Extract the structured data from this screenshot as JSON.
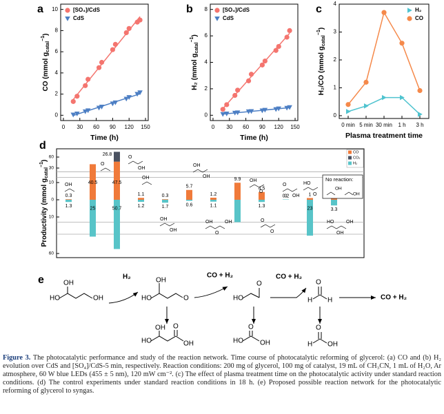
{
  "chart_data": [
    {
      "type": "scatter",
      "panel": "a",
      "xlabel": "Time (h)",
      "ylabel": [
        "CO (mmol g",
        "catal",
        "−1",
        ")"
      ],
      "x": [
        18,
        25,
        40,
        45,
        65,
        70,
        90,
        95,
        115,
        120,
        135,
        140
      ],
      "series": [
        {
          "name": "[SO₄]/CdS",
          "color": "#f4756f",
          "marker": "circle",
          "values": [
            1.3,
            1.8,
            2.8,
            3.4,
            4.5,
            5.0,
            6.2,
            6.7,
            7.8,
            8.2,
            8.8,
            9.0
          ]
        },
        {
          "name": "CdS",
          "color": "#4d7fc4",
          "marker": "triangle-down",
          "values": [
            0.05,
            0.15,
            0.35,
            0.45,
            0.7,
            0.8,
            1.1,
            1.2,
            1.55,
            1.7,
            2.0,
            2.15
          ]
        }
      ],
      "xlim": [
        -5,
        155
      ],
      "xticks": [
        0,
        30,
        60,
        90,
        120,
        150
      ],
      "ylim": [
        -0.5,
        10.5
      ],
      "yticks": [
        0,
        2,
        4,
        6,
        8,
        10
      ],
      "fit_line": true,
      "legend": "upper left"
    },
    {
      "type": "scatter",
      "panel": "b",
      "xlabel": "Time (h)",
      "ylabel": [
        "H₂ (mmol g",
        "catal",
        "−1",
        ")"
      ],
      "x": [
        18,
        25,
        40,
        45,
        65,
        70,
        90,
        95,
        115,
        120,
        135,
        140
      ],
      "series": [
        {
          "name": "[SO₄]/CdS",
          "color": "#f4756f",
          "marker": "circle",
          "values": [
            0.45,
            0.8,
            1.5,
            1.9,
            2.6,
            3.1,
            3.8,
            4.1,
            4.9,
            5.2,
            5.9,
            6.4
          ]
        },
        {
          "name": "CdS",
          "color": "#4d7fc4",
          "marker": "triangle-down",
          "values": [
            0.08,
            0.12,
            0.18,
            0.2,
            0.28,
            0.3,
            0.35,
            0.4,
            0.45,
            0.5,
            0.55,
            0.6
          ]
        }
      ],
      "xlim": [
        -5,
        155
      ],
      "xticks": [
        0,
        30,
        60,
        90,
        120,
        150
      ],
      "ylim": [
        -0.4,
        8.4
      ],
      "yticks": [
        0,
        2,
        4,
        6,
        8
      ],
      "fit_line": true,
      "legend": "upper left"
    },
    {
      "type": "scatter",
      "panel": "c",
      "xlabel": "Plasma treatment time",
      "ylabel": [
        "H₂/CO (mmol g",
        "catal",
        "−1",
        ")"
      ],
      "categories": [
        "0 min",
        "5 min",
        "30 min",
        "1 h",
        "3 h"
      ],
      "series": [
        {
          "name": "H₂",
          "color": "#4fc3cf",
          "marker": "triangle-right",
          "values": [
            0.15,
            0.35,
            0.65,
            0.65,
            0.05
          ]
        },
        {
          "name": "CO",
          "color": "#f5894a",
          "marker": "circle",
          "values": [
            0.4,
            1.2,
            3.7,
            2.6,
            0.9
          ]
        }
      ],
      "ylim": [
        -0.1,
        4
      ],
      "yticks": [
        0,
        1,
        2,
        3,
        4
      ],
      "lines": true,
      "legend": "upper right"
    },
    {
      "type": "bar",
      "panel": "d",
      "ylabel": [
        "Productivity (mmol g",
        "catal",
        "−1",
        ")"
      ],
      "categories": [
        null,
        null,
        null,
        null,
        null,
        null,
        null,
        null,
        null,
        null,
        null,
        null
      ],
      "series": [
        {
          "name": "CO",
          "color": "#f07a3a",
          "values": [
            0.3,
            40.5,
            47.5,
            1.1,
            0.3,
            5.7,
            1.2,
            9.9,
            4.5,
            0.2,
            1,
            3.3
          ]
        },
        {
          "name": "CO₂",
          "color": "#4a5160",
          "values": [
            null,
            null,
            26.8,
            null,
            null,
            null,
            null,
            null,
            null,
            null,
            null,
            null
          ]
        },
        {
          "name": "H₂",
          "color": "#58c4c8",
          "values": [
            -1.3,
            -25,
            -50.7,
            -1.2,
            -1.7,
            -0.6,
            -1.1,
            -13,
            -1.3,
            0,
            -23,
            -3.3
          ],
          "value_labels": [
            "1.3",
            "25",
            "50.7",
            "1.2",
            "1.7",
            "0.6",
            "1.1",
            null,
            "1.3",
            "0",
            "23",
            "3.3"
          ]
        }
      ],
      "stacked": true,
      "ylim": [
        -60,
        60
      ],
      "axis_breaks": [
        [
          -20,
          -13
        ],
        [
          13,
          20
        ]
      ],
      "yticks": [
        {
          "value": -60,
          "label": "60"
        },
        {
          "value": -10,
          "label": "10"
        },
        0,
        10,
        30,
        60
      ],
      "legend": "upper right",
      "inset": {
        "title": "No reaction:",
        "labels": [
          "OH",
          "OH"
        ]
      },
      "structures": [
        {
          "labels": [
            "OH"
          ]
        },
        {
          "labels": [
            "O"
          ]
        },
        {
          "labels": [
            "O",
            "OH"
          ]
        },
        {
          "labels": [
            "OH"
          ]
        },
        {
          "labels": [
            "OH",
            "OH"
          ]
        },
        {
          "labels": [
            "OH",
            "OH"
          ]
        },
        {
          "labels": [
            "OH",
            "O",
            "OH"
          ]
        },
        {
          "labels": [
            "OH",
            "O"
          ]
        },
        {
          "labels": [
            "O",
            "O"
          ]
        },
        {
          "labels": [
            "O",
            "OH"
          ]
        },
        {
          "labels": [
            "HO",
            "O"
          ]
        },
        {
          "labels": [
            "HO",
            "OH",
            "OH"
          ]
        }
      ]
    }
  ],
  "scheme": {
    "panel": "e",
    "released": [
      "H₂",
      "CO + H₂",
      "CO + H₂"
    ],
    "final": "CO + H₂",
    "molecules": [
      {
        "labels": [
          "HO",
          "OH",
          "OH"
        ]
      },
      {
        "labels": [
          "HO",
          "OH",
          "O"
        ]
      },
      {
        "labels": [
          "HO",
          "O"
        ]
      },
      {
        "labels": [
          "O",
          "H",
          "H"
        ]
      },
      {
        "labels": [
          "HO",
          "OH",
          "O",
          "OH"
        ]
      },
      {
        "labels": [
          "HO",
          "O",
          "OH"
        ]
      },
      {
        "labels": [
          "O",
          "H",
          "OH"
        ]
      }
    ]
  },
  "caption": {
    "label": "Figure 3.",
    "text": "The photocatalytic performance and study of the reaction network. Time course of photocatalytic reforming of glycerol: (a) CO and (b) H₂ evolution over CdS and [SO₄]/CdS-5 min, respectively. Reaction conditions: 200 mg of glycerol, 100 mg of catalyst, 19 mL of CH₃CN, 1 mL of H₂O, Ar atmosphere, 60 W blue LEDs (455 ± 5 nm), 120 mW cm⁻². (c) The effect of plasma treatment time on the photocatalytic activity under standard reaction conditions. (d) The control experiments under standard reaction conditions in 18 h. (e) Proposed possible reaction network for the photocatalytic reforming of glycerol to syngas."
  }
}
